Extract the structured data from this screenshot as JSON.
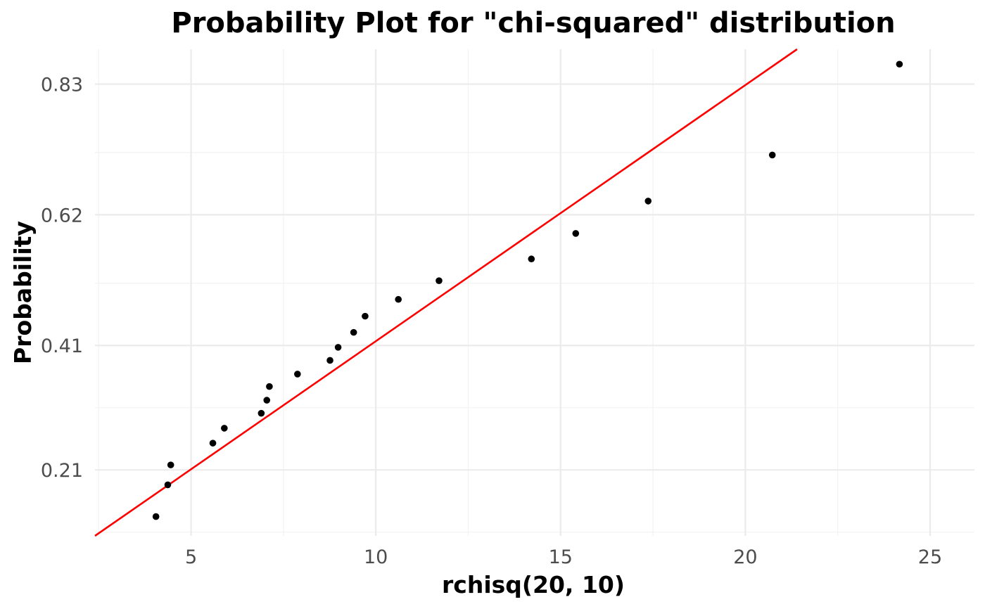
{
  "chart_data": {
    "type": "scatter",
    "title": "Probability Plot for \"chi-squared\" distribution",
    "xlabel": "rchisq(20, 10)",
    "ylabel": "Probability",
    "xlim": [
      2.4,
      26.2
    ],
    "ylim": [
      0.104,
      0.886
    ],
    "x_ticks": [
      5,
      10,
      15,
      20,
      25
    ],
    "x_tick_labels": [
      "5",
      "10",
      "15",
      "20",
      "25"
    ],
    "y_ticks": [
      0.21,
      0.41,
      0.62,
      0.83
    ],
    "y_tick_labels": [
      "0.21",
      "0.41",
      "0.62",
      "0.83"
    ],
    "grid": true,
    "legend": "none",
    "colors": {
      "points": "#000000",
      "line": "#ff0000",
      "grid_major": "#ebebeb",
      "grid_minor": "#f2f2f2"
    },
    "reference_line": {
      "x": [
        2.4,
        21.4
      ],
      "y": [
        0.104,
        0.886
      ]
    },
    "series": [
      {
        "x": [
          4.05,
          4.37,
          4.45,
          5.59,
          5.9,
          6.9,
          7.05,
          7.12,
          7.88,
          8.76,
          8.98,
          9.4,
          9.71,
          10.61,
          11.71,
          14.21,
          15.41,
          17.37,
          20.73,
          24.17
        ],
        "y": [
          0.135,
          0.186,
          0.218,
          0.253,
          0.277,
          0.301,
          0.322,
          0.344,
          0.364,
          0.386,
          0.407,
          0.431,
          0.457,
          0.484,
          0.514,
          0.549,
          0.59,
          0.642,
          0.716,
          0.862
        ]
      }
    ]
  }
}
